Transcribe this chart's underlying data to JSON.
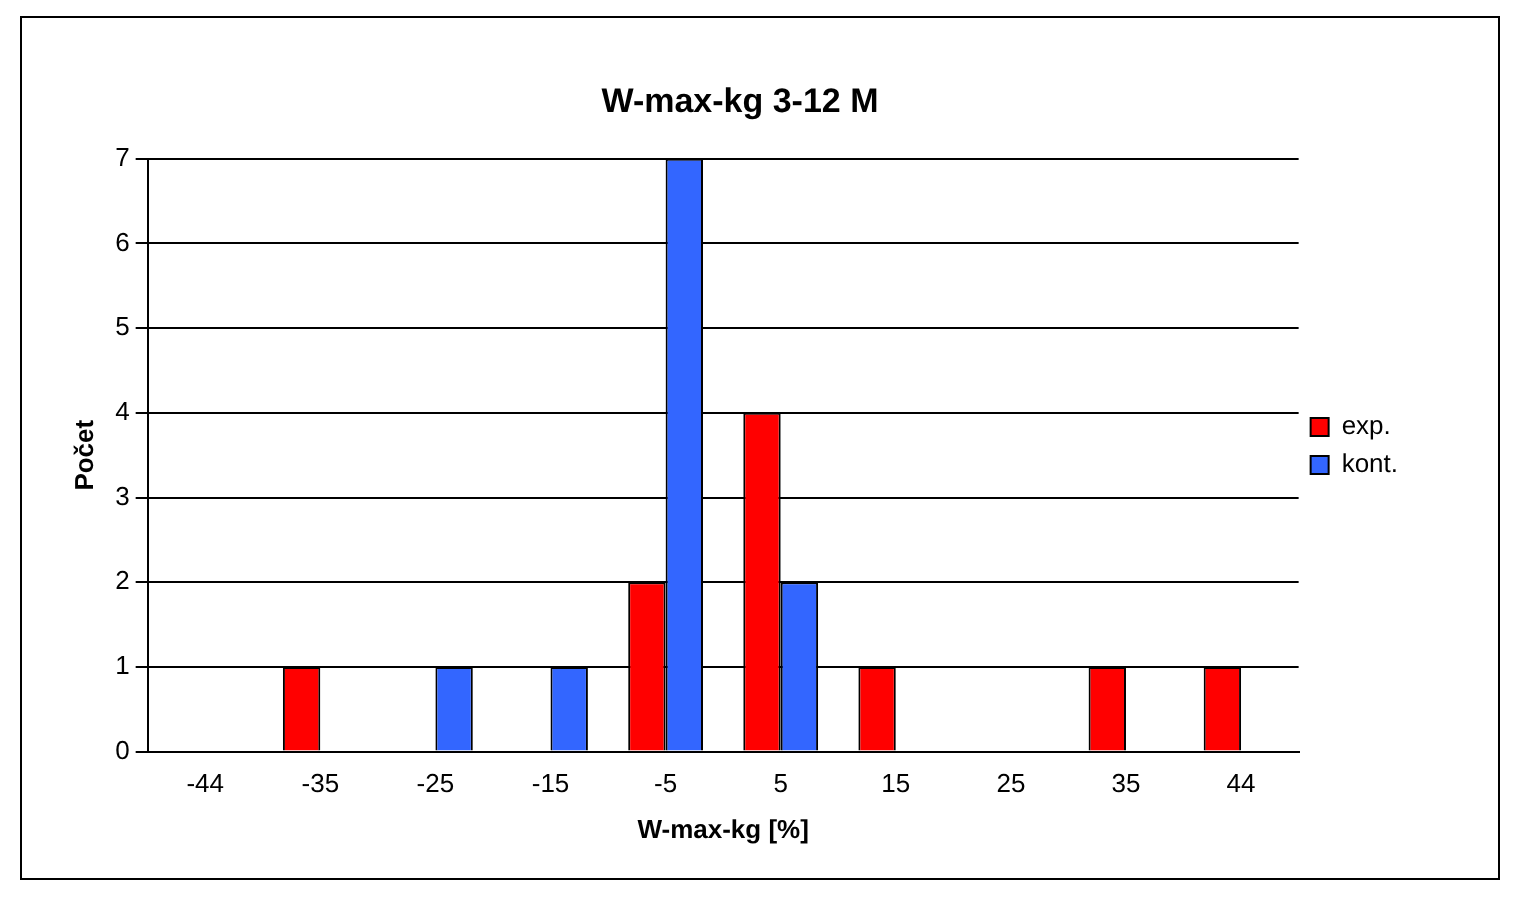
{
  "chart_data": {
    "type": "bar",
    "title": "W-max-kg 3-12 M",
    "xlabel": "W-max-kg [%]",
    "ylabel": "Počet",
    "categories": [
      "-44",
      "-35",
      "-25",
      "-15",
      "-5",
      "5",
      "15",
      "25",
      "35",
      "44"
    ],
    "series": [
      {
        "name": "exp.",
        "color": "#ff0000",
        "values": [
          0,
          1,
          0,
          0,
          2,
          4,
          1,
          0,
          1,
          1
        ]
      },
      {
        "name": "kont.",
        "color": "#3366ff",
        "values": [
          0,
          0,
          1,
          1,
          7,
          2,
          0,
          0,
          0,
          0
        ]
      }
    ],
    "ylim": [
      0,
      7
    ],
    "yticks": [
      0,
      1,
      2,
      3,
      4,
      5,
      6,
      7
    ],
    "grid": "y",
    "legend": "right"
  }
}
